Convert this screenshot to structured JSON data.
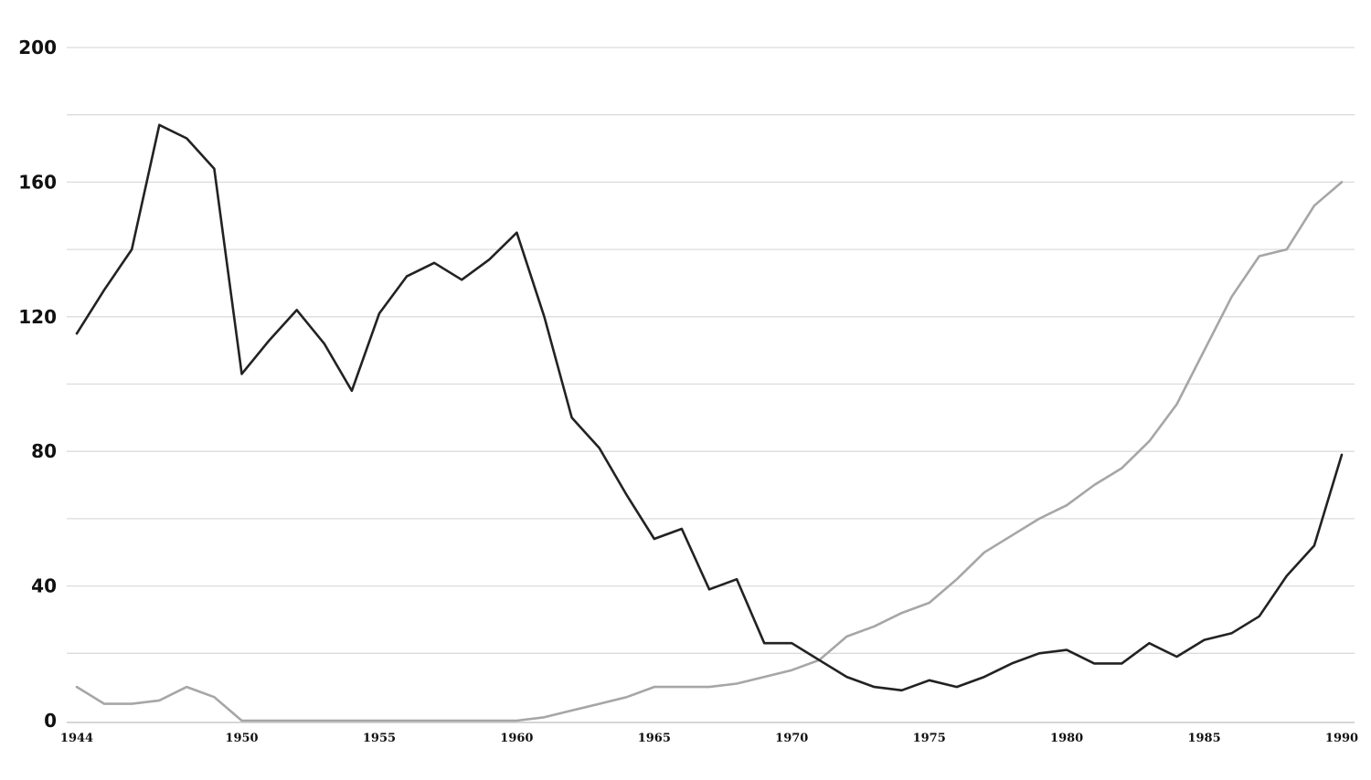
{
  "chart_data": {
    "type": "line",
    "title": "",
    "xlabel": "",
    "ylabel": "",
    "xlim": [
      1944,
      1990
    ],
    "ylim": [
      0,
      200
    ],
    "y_ticks": [
      0,
      40,
      80,
      120,
      160,
      200
    ],
    "x_ticks": [
      1944,
      1950,
      1955,
      1960,
      1965,
      1970,
      1975,
      1980,
      1985,
      1990
    ],
    "grid": true,
    "legend": "none",
    "x": [
      1944,
      1945,
      1946,
      1947,
      1948,
      1949,
      1950,
      1951,
      1952,
      1953,
      1954,
      1955,
      1956,
      1957,
      1958,
      1959,
      1960,
      1961,
      1962,
      1963,
      1964,
      1965,
      1966,
      1967,
      1968,
      1969,
      1970,
      1971,
      1972,
      1973,
      1974,
      1975,
      1976,
      1977,
      1978,
      1979,
      1980,
      1981,
      1982,
      1983,
      1984,
      1985,
      1986,
      1987,
      1988,
      1989,
      1990
    ],
    "series": [
      {
        "color": "#222222",
        "values": [
          115,
          128,
          140,
          177,
          173,
          164,
          103,
          113,
          122,
          112,
          98,
          121,
          132,
          136,
          131,
          137,
          145,
          120,
          90,
          81,
          67,
          54,
          57,
          39,
          42,
          23,
          23,
          18,
          13,
          10,
          9,
          12,
          10,
          13,
          17,
          20,
          21,
          17,
          17,
          23,
          19,
          24,
          26,
          31,
          43,
          52,
          79
        ]
      },
      {
        "color": "#a6a6a6",
        "values": [
          10,
          5,
          5,
          6,
          10,
          7,
          0,
          0,
          0,
          0,
          0,
          0,
          0,
          0,
          0,
          0,
          0,
          1,
          3,
          5,
          7,
          10,
          10,
          10,
          11,
          13,
          15,
          18,
          25,
          28,
          32,
          35,
          42,
          50,
          55,
          60,
          64,
          70,
          75,
          83,
          94,
          110,
          126,
          138,
          140,
          153,
          160
        ]
      }
    ]
  }
}
